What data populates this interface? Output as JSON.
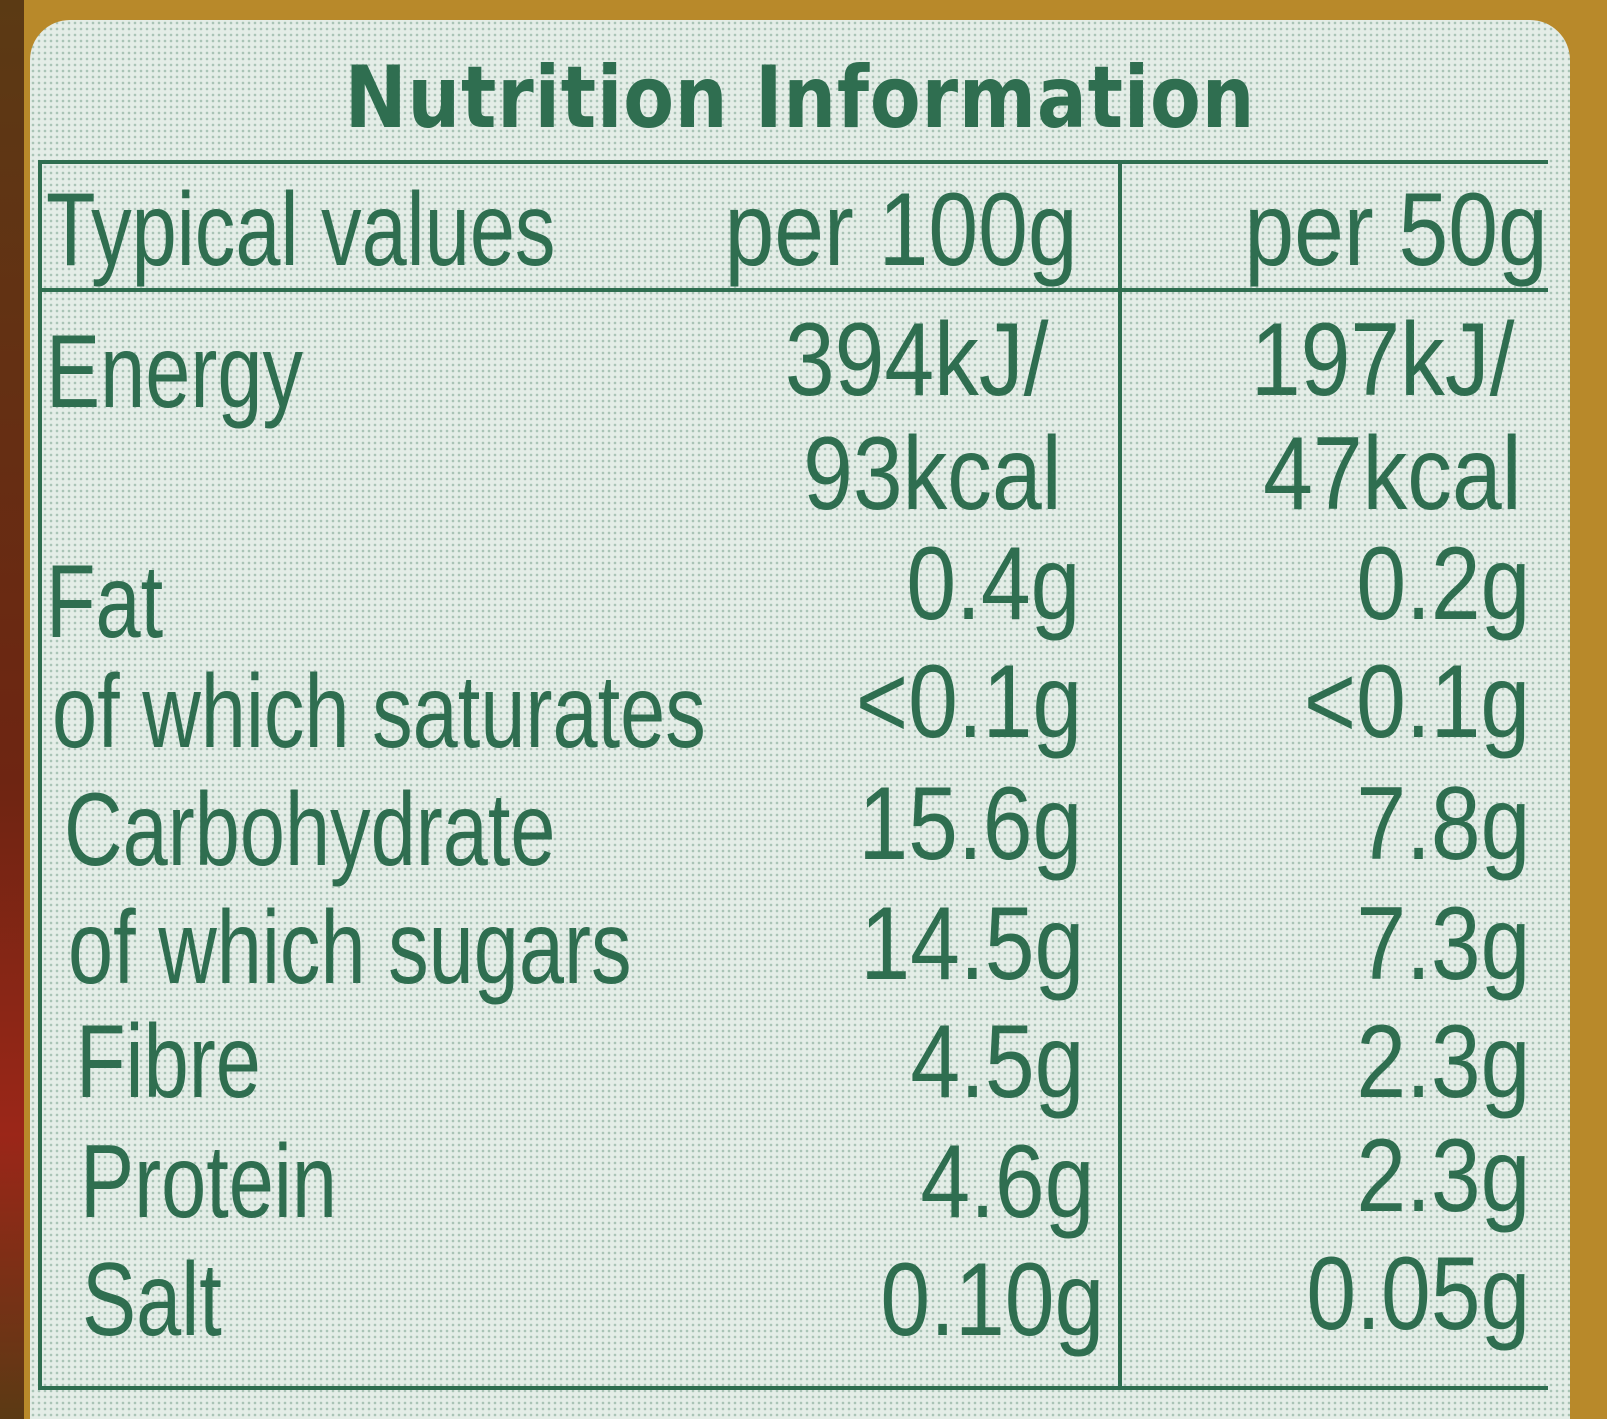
{
  "title": "Nutrition Information",
  "header": {
    "typical": "Typical values",
    "col1": "per 100g",
    "col2": "per 50g"
  },
  "rows": [
    {
      "label": "Energy",
      "v1": "394kJ/",
      "v2": "197kJ/"
    },
    {
      "label": "",
      "v1": "93kcal",
      "v2": "47kcal"
    },
    {
      "label": "Fat",
      "v1": "0.4g",
      "v2": "0.2g"
    },
    {
      "label": "of which saturates",
      "v1": "<0.1g",
      "v2": "<0.1g"
    },
    {
      "label": "Carbohydrate",
      "v1": "15.6g",
      "v2": "7.8g"
    },
    {
      "label": "of which sugars",
      "v1": "14.5g",
      "v2": "7.3g"
    },
    {
      "label": "Fibre",
      "v1": "4.5g",
      "v2": "2.3g"
    },
    {
      "label": "Protein",
      "v1": "4.6g",
      "v2": "2.3g"
    },
    {
      "label": "Salt",
      "v1": "0.10g",
      "v2": "0.05g"
    }
  ],
  "colors": {
    "ink": "#2f6e50",
    "panel": "#e4ede7",
    "packaging": "#b8892a"
  }
}
